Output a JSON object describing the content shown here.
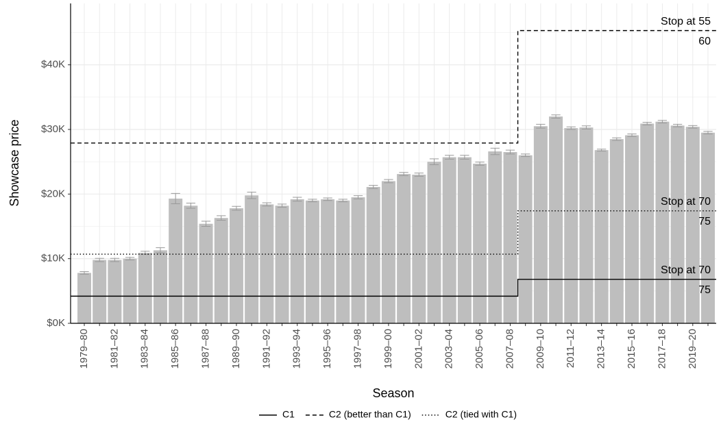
{
  "chart_data": {
    "type": "bar",
    "x_label": "Season",
    "y_label": "Showcase price",
    "categories": [
      "1979–80",
      null,
      "1981–82",
      null,
      "1983–84",
      null,
      "1985–86",
      null,
      "1987–88",
      null,
      "1989–90",
      null,
      "1991–92",
      null,
      "1993–94",
      null,
      "1995–96",
      null,
      "1997–98",
      null,
      "1999–00",
      null,
      "2001–02",
      null,
      "2003–04",
      null,
      "2005–06",
      null,
      "2007–08",
      null,
      "2009–10",
      null,
      "2011–12",
      null,
      "2013–14",
      null,
      "2015–16",
      null,
      "2017–18",
      null,
      "2019–20",
      null
    ],
    "values": [
      7800,
      9800,
      9800,
      10000,
      10900,
      11300,
      19300,
      18200,
      15400,
      16300,
      17800,
      19800,
      18400,
      18200,
      19200,
      19000,
      19200,
      19000,
      19500,
      21100,
      22000,
      23100,
      23000,
      25000,
      25700,
      25700,
      24700,
      26600,
      26500,
      26000,
      30500,
      32000,
      30200,
      30300,
      26800,
      28500,
      29100,
      30900,
      31200,
      30600,
      30400,
      29500
    ],
    "errors": [
      200,
      250,
      250,
      200,
      250,
      400,
      800,
      400,
      400,
      350,
      300,
      500,
      250,
      250,
      300,
      200,
      200,
      200,
      250,
      250,
      250,
      250,
      250,
      450,
      300,
      300,
      250,
      500,
      300,
      200,
      300,
      250,
      200,
      250,
      150,
      200,
      200,
      200,
      200,
      200,
      200,
      200
    ],
    "color": "#bebebe",
    "error_color": "#999999",
    "ylim": [
      0,
      49500
    ],
    "yticks": [
      {
        "value": 0,
        "label": "$0K"
      },
      {
        "value": 10000,
        "label": "$10K"
      },
      {
        "value": 20000,
        "label": "$20K"
      },
      {
        "value": 30000,
        "label": "$30K"
      },
      {
        "value": 40000,
        "label": "$40K"
      }
    ],
    "y_minor_ticks": [
      5000,
      15000,
      25000,
      35000,
      45000
    ],
    "grid": true,
    "legend_position": "bottom",
    "series": [
      {
        "name": "C1",
        "linetype": "solid",
        "color": "#000000",
        "annotation": [
          "Stop at 70",
          "75"
        ],
        "values": [
          4200,
          4200,
          4200,
          4200,
          4200,
          4200,
          4200,
          4200,
          4200,
          4200,
          4200,
          4200,
          4200,
          4200,
          4200,
          4200,
          4200,
          4200,
          4200,
          4200,
          4200,
          4200,
          4200,
          4200,
          4200,
          4200,
          4200,
          4200,
          4200,
          6800,
          6800,
          6800,
          6800,
          6800,
          6800,
          6800,
          6800,
          6800,
          6800,
          6800,
          6800,
          6800
        ]
      },
      {
        "name": "C2 (better than C1)",
        "linetype": "dashed",
        "color": "#000000",
        "annotation": [
          "Stop at 55",
          "60"
        ],
        "values": [
          27900,
          27900,
          27900,
          27900,
          27900,
          27900,
          27900,
          27900,
          27900,
          27900,
          27900,
          27900,
          27900,
          27900,
          27900,
          27900,
          27900,
          27900,
          27900,
          27900,
          27900,
          27900,
          27900,
          27900,
          27900,
          27900,
          27900,
          27900,
          27900,
          45300,
          45300,
          45300,
          45300,
          45300,
          45300,
          45300,
          45300,
          45300,
          45300,
          45300,
          45300,
          45300
        ]
      },
      {
        "name": "C2 (tied with C1)",
        "linetype": "dotted",
        "color": "#000000",
        "annotation": [
          "Stop at 70",
          "75"
        ],
        "values": [
          10700,
          10700,
          10700,
          10700,
          10700,
          10700,
          10700,
          10700,
          10700,
          10700,
          10700,
          10700,
          10700,
          10700,
          10700,
          10700,
          10700,
          10700,
          10700,
          10700,
          10700,
          10700,
          10700,
          10700,
          10700,
          10700,
          10700,
          10700,
          10700,
          17400,
          17400,
          17400,
          17400,
          17400,
          17400,
          17400,
          17400,
          17400,
          17400,
          17400,
          17400,
          17400
        ]
      }
    ]
  }
}
